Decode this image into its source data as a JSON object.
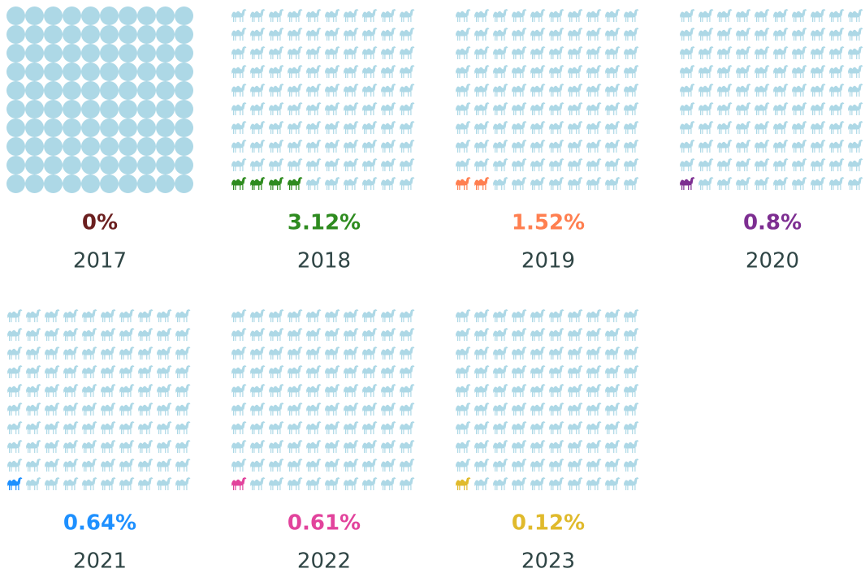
{
  "chart_data": {
    "type": "waffle",
    "categories": [
      "2017",
      "2018",
      "2019",
      "2020",
      "2021",
      "2022",
      "2023"
    ],
    "values": [
      0,
      3.12,
      1.52,
      0.8,
      0.64,
      0.61,
      0.12
    ],
    "value_labels": [
      "0%",
      "3.12%",
      "1.52%",
      "0.8%",
      "0.64%",
      "0.61%",
      "0.12%"
    ],
    "colors": [
      "#6b1f1f",
      "#2e8b1f",
      "#ff7f50",
      "#7d2e91",
      "#1e90ff",
      "#e2439c",
      "#e0ba2c"
    ],
    "icons": [
      "circle",
      "camel",
      "camel",
      "camel",
      "camel",
      "camel",
      "camel"
    ],
    "base_color": "#add8e6",
    "rows": 10,
    "columns": 10
  }
}
